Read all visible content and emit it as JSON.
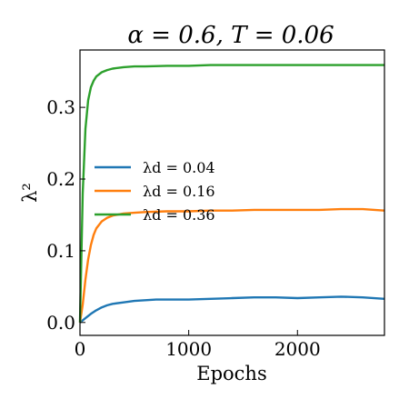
{
  "chart_data": {
    "type": "line",
    "title": "α = 0.6, T = 0.06",
    "xlabel": "Epochs",
    "ylabel": "λ²",
    "xlim": [
      0,
      2800
    ],
    "ylim": [
      -0.018,
      0.38
    ],
    "xticks": [
      0,
      1000,
      2000
    ],
    "xtick_labels": [
      "0",
      "1000",
      "2000"
    ],
    "yticks": [
      0.0,
      0.1,
      0.2,
      0.3
    ],
    "ytick_labels": [
      "0.0",
      "0.1",
      "0.2",
      "0.3"
    ],
    "grid": false,
    "legend_position": "center-left",
    "series": [
      {
        "name": "λd = 0.04",
        "color": "#1f77b4",
        "x": [
          0,
          25,
          50,
          75,
          100,
          150,
          200,
          250,
          300,
          400,
          500,
          600,
          700,
          800,
          1000,
          1200,
          1400,
          1600,
          1800,
          2000,
          2200,
          2400,
          2600,
          2800
        ],
        "y": [
          0.0,
          0.003,
          0.006,
          0.009,
          0.012,
          0.017,
          0.021,
          0.024,
          0.026,
          0.028,
          0.03,
          0.031,
          0.032,
          0.032,
          0.032,
          0.033,
          0.034,
          0.035,
          0.035,
          0.034,
          0.035,
          0.036,
          0.035,
          0.033
        ]
      },
      {
        "name": "λd = 0.16",
        "color": "#ff7f0e",
        "x": [
          0,
          25,
          50,
          75,
          100,
          125,
          150,
          200,
          250,
          300,
          400,
          500,
          600,
          800,
          1000,
          1200,
          1400,
          1600,
          1800,
          2000,
          2200,
          2400,
          2600,
          2800
        ],
        "y": [
          0.0,
          0.025,
          0.06,
          0.088,
          0.108,
          0.122,
          0.131,
          0.141,
          0.146,
          0.149,
          0.152,
          0.153,
          0.154,
          0.155,
          0.155,
          0.156,
          0.156,
          0.157,
          0.157,
          0.157,
          0.157,
          0.158,
          0.158,
          0.156
        ]
      },
      {
        "name": "λd = 0.36",
        "color": "#2ca02c",
        "x": [
          0,
          25,
          50,
          75,
          100,
          125,
          150,
          200,
          250,
          300,
          400,
          500,
          600,
          800,
          1000,
          1200,
          1400,
          1600,
          1800,
          2000,
          2200,
          2400,
          2600,
          2800
        ],
        "y": [
          0.0,
          0.18,
          0.27,
          0.31,
          0.328,
          0.337,
          0.343,
          0.349,
          0.352,
          0.354,
          0.356,
          0.357,
          0.357,
          0.358,
          0.358,
          0.359,
          0.359,
          0.359,
          0.359,
          0.359,
          0.359,
          0.359,
          0.359,
          0.359
        ]
      }
    ]
  }
}
